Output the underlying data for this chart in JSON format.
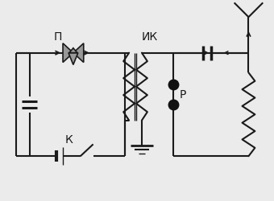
{
  "bg_color": "#ebebeb",
  "line_color": "#1a1a1a",
  "label_П": "П",
  "label_ИК": "ИК",
  "label_К": "К",
  "label_Р": "Р",
  "speaker_fill": "#999999",
  "dot_color": "#111111"
}
